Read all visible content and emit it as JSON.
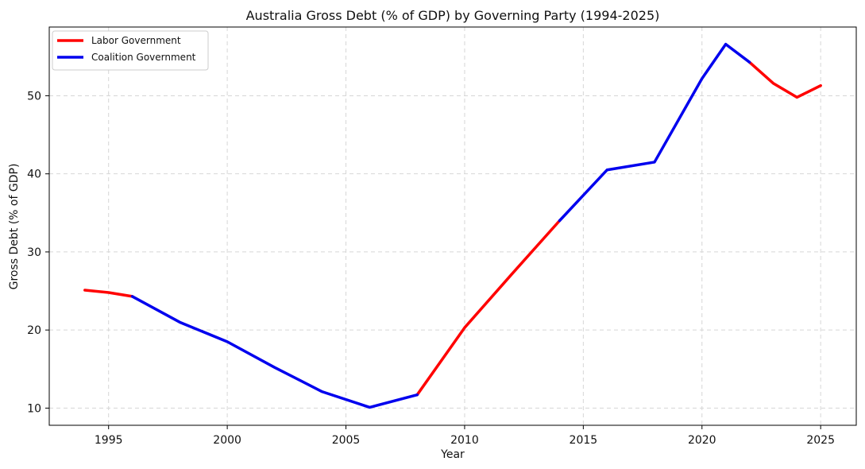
{
  "chart_data": {
    "type": "line",
    "title": "Australia Gross Debt (% of GDP) by Governing Party (1994-2025)",
    "xlabel": "Year",
    "ylabel": "Gross Debt (% of GDP)",
    "xlim": [
      1992.5,
      2026.5
    ],
    "ylim": [
      7.8,
      58.8
    ],
    "x_ticks": [
      1995,
      2000,
      2005,
      2010,
      2015,
      2020,
      2025
    ],
    "y_ticks": [
      10,
      20,
      30,
      40,
      50
    ],
    "grid": true,
    "legend_position": "top-left",
    "series": [
      {
        "name": "Labor Government",
        "color": "#ff0000",
        "segments": [
          {
            "x": [
              1994,
              1995,
              1996
            ],
            "y": [
              25.1,
              24.8,
              24.3
            ]
          },
          {
            "x": [
              2008,
              2010,
              2012,
              2014
            ],
            "y": [
              11.7,
              20.3,
              27.2,
              34.0
            ]
          },
          {
            "x": [
              2022,
              2023,
              2024,
              2025
            ],
            "y": [
              54.3,
              51.6,
              49.8,
              51.3
            ]
          }
        ]
      },
      {
        "name": "Coalition Government",
        "color": "#0000ee",
        "segments": [
          {
            "x": [
              1996,
              1998,
              2000,
              2002,
              2004,
              2006,
              2008
            ],
            "y": [
              24.3,
              21.0,
              18.5,
              15.2,
              12.1,
              10.1,
              11.7
            ]
          },
          {
            "x": [
              2014,
              2016,
              2018,
              2020,
              2021,
              2022
            ],
            "y": [
              34.0,
              40.5,
              41.5,
              52.2,
              56.6,
              54.3
            ]
          }
        ]
      }
    ]
  }
}
